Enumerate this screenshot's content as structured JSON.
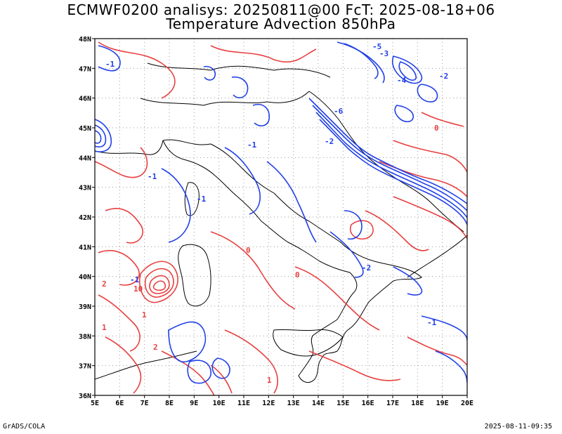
{
  "header": {
    "line1": "ECMWF0200 analisys: 20250811@00 FcT: 2025-08-18+06",
    "line2": "Temperature Advection 850hPa"
  },
  "footer": {
    "left": "GrADS/COLA",
    "right": "2025-08-11-09:35"
  },
  "map": {
    "lon_labels": [
      "5E",
      "6E",
      "7E",
      "8E",
      "9E",
      "10E",
      "11E",
      "12E",
      "13E",
      "14E",
      "15E",
      "16E",
      "17E",
      "18E",
      "19E",
      "20E"
    ],
    "lat_labels": [
      "36N",
      "37N",
      "38N",
      "39N",
      "40N",
      "41N",
      "42N",
      "43N",
      "44N",
      "45N",
      "46N",
      "47N",
      "48N"
    ],
    "lon_range": [
      5,
      20
    ],
    "lat_range": [
      36,
      48
    ],
    "grid": "dotted",
    "colors": {
      "positive": "#e84040",
      "negative": "#2040e8",
      "coast": "#000000"
    },
    "contour_labels": [
      {
        "text": "-1",
        "color": "negative"
      },
      {
        "text": "-1",
        "color": "negative"
      },
      {
        "text": "-1",
        "color": "negative"
      },
      {
        "text": "-1",
        "color": "negative"
      },
      {
        "text": "-2",
        "color": "negative"
      },
      {
        "text": "-3",
        "color": "negative"
      },
      {
        "text": "-4",
        "color": "negative"
      },
      {
        "text": "-5",
        "color": "negative"
      },
      {
        "text": "-6",
        "color": "negative"
      },
      {
        "text": "-1",
        "color": "negative"
      },
      {
        "text": "-2",
        "color": "negative"
      },
      {
        "text": "0",
        "color": "positive"
      },
      {
        "text": "0",
        "color": "positive"
      },
      {
        "text": "0",
        "color": "positive"
      },
      {
        "text": "1",
        "color": "positive"
      },
      {
        "text": "1",
        "color": "positive"
      },
      {
        "text": "2",
        "color": "positive"
      },
      {
        "text": "2",
        "color": "positive"
      },
      {
        "text": "10",
        "color": "positive"
      },
      {
        "text": "1",
        "color": "positive"
      },
      {
        "text": "-1",
        "color": "negative"
      },
      {
        "text": "-2",
        "color": "negative"
      }
    ]
  }
}
